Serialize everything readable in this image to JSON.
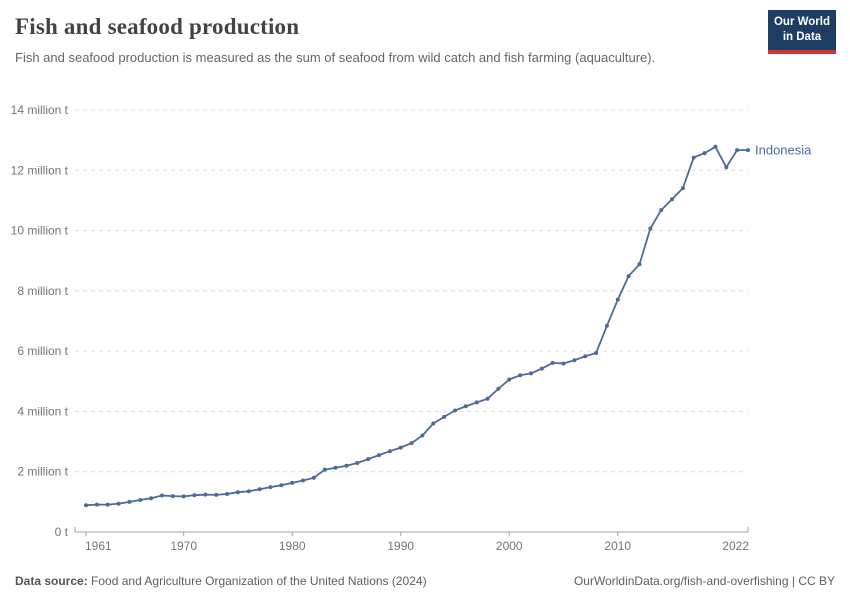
{
  "header": {
    "title": "Fish and seafood production",
    "subtitle": "Fish and seafood production is measured as the sum of seafood from wild catch and fish farming (aquaculture)."
  },
  "logo": {
    "line1": "Our World",
    "line2": "in Data",
    "bg_color": "#1d3d63",
    "accent_color": "#d13438"
  },
  "chart_data": {
    "type": "line",
    "title": "Fish and seafood production",
    "unit": "million t",
    "xlim": [
      1961,
      2022
    ],
    "ylim": [
      0,
      14
    ],
    "grid": "horizontal-dashed",
    "legend_position": "end-of-line-label",
    "x": [
      1961,
      1962,
      1963,
      1964,
      1965,
      1966,
      1967,
      1968,
      1969,
      1970,
      1971,
      1972,
      1973,
      1974,
      1975,
      1976,
      1977,
      1978,
      1979,
      1980,
      1981,
      1982,
      1983,
      1984,
      1985,
      1986,
      1987,
      1988,
      1989,
      1990,
      1991,
      1992,
      1993,
      1994,
      1995,
      1996,
      1997,
      1998,
      1999,
      2000,
      2001,
      2002,
      2003,
      2004,
      2005,
      2006,
      2007,
      2008,
      2009,
      2010,
      2011,
      2012,
      2013,
      2014,
      2015,
      2016,
      2017,
      2018,
      2019,
      2020,
      2021,
      2022
    ],
    "series": [
      {
        "name": "Indonesia",
        "color": "#4C6A9C",
        "values": [
          0.89,
          0.91,
          0.91,
          0.94,
          1.0,
          1.06,
          1.12,
          1.21,
          1.19,
          1.18,
          1.22,
          1.24,
          1.23,
          1.26,
          1.32,
          1.35,
          1.42,
          1.49,
          1.55,
          1.63,
          1.71,
          1.8,
          2.07,
          2.13,
          2.2,
          2.29,
          2.42,
          2.55,
          2.68,
          2.8,
          2.95,
          3.2,
          3.6,
          3.82,
          4.03,
          4.17,
          4.3,
          4.42,
          4.75,
          5.06,
          5.2,
          5.26,
          5.42,
          5.61,
          5.59,
          5.7,
          5.83,
          5.94,
          6.84,
          7.71,
          8.49,
          8.88,
          10.07,
          10.68,
          11.04,
          11.41,
          12.42,
          12.57,
          12.78,
          12.1,
          12.67,
          12.67
        ]
      }
    ],
    "yticks": [
      {
        "value": 0,
        "label": "0 t"
      },
      {
        "value": 2,
        "label": "2 million t"
      },
      {
        "value": 4,
        "label": "4 million t"
      },
      {
        "value": 6,
        "label": "6 million t"
      },
      {
        "value": 8,
        "label": "8 million t"
      },
      {
        "value": 10,
        "label": "10 million t"
      },
      {
        "value": 12,
        "label": "12 million t"
      },
      {
        "value": 14,
        "label": "14 million t"
      }
    ],
    "xticks": [
      {
        "value": 1961,
        "label": "1961",
        "align": "start"
      },
      {
        "value": 1970,
        "label": "1970",
        "align": "middle"
      },
      {
        "value": 1980,
        "label": "1980",
        "align": "middle"
      },
      {
        "value": 1990,
        "label": "1990",
        "align": "middle"
      },
      {
        "value": 2000,
        "label": "2000",
        "align": "middle"
      },
      {
        "value": 2010,
        "label": "2010",
        "align": "middle"
      },
      {
        "value": 2022,
        "label": "2022",
        "align": "end"
      }
    ]
  },
  "footer": {
    "datasource_label": "Data source:",
    "datasource_text": " Food and Agriculture Organization of the United Nations (2024)",
    "link_text": "OurWorldinData.org/fish-and-overfishing",
    "separator": " | ",
    "license_text": "CC BY"
  },
  "colors": {
    "line": "#4C6A9C",
    "gridline": "#dcdcdc",
    "axis": "#a3a3a3",
    "tick_text": "#757575",
    "title_text": "#444444",
    "subtitle_text": "#666666",
    "footer_text": "#5e5e5e"
  }
}
